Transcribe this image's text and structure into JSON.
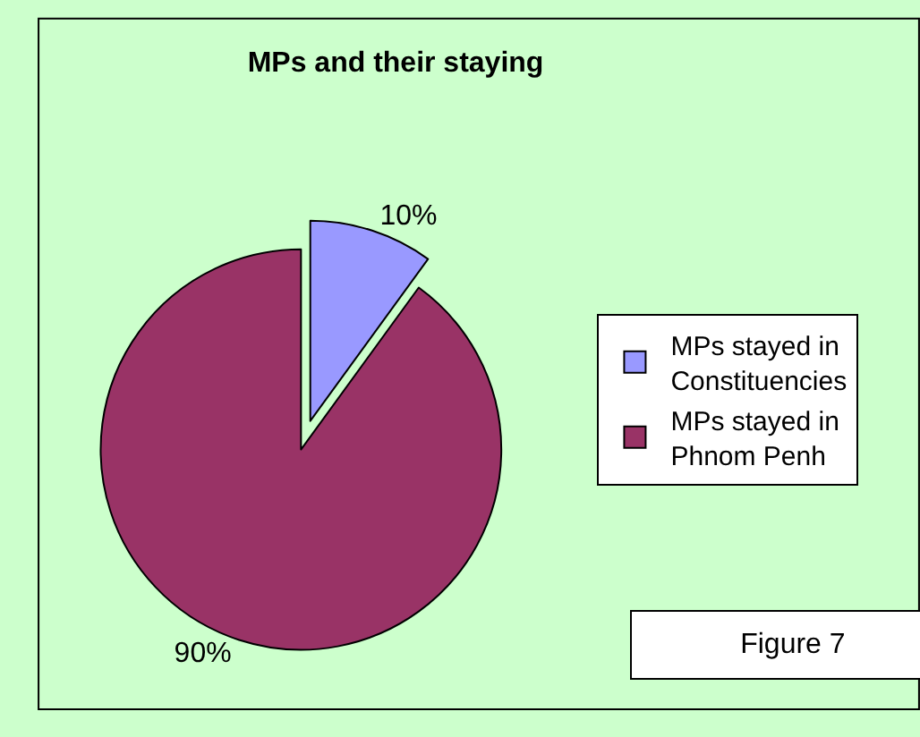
{
  "chart_data": {
    "type": "pie",
    "title": "MPs and their staying",
    "categories": [
      "MPs stayed in Constituencies",
      "MPs stayed in Phnom Penh"
    ],
    "values": [
      10,
      90
    ],
    "colors": [
      "#9999ff",
      "#993366"
    ],
    "value_labels": [
      "10%",
      "90%"
    ],
    "legend": "right",
    "annotations": [
      "Figure 7"
    ]
  }
}
